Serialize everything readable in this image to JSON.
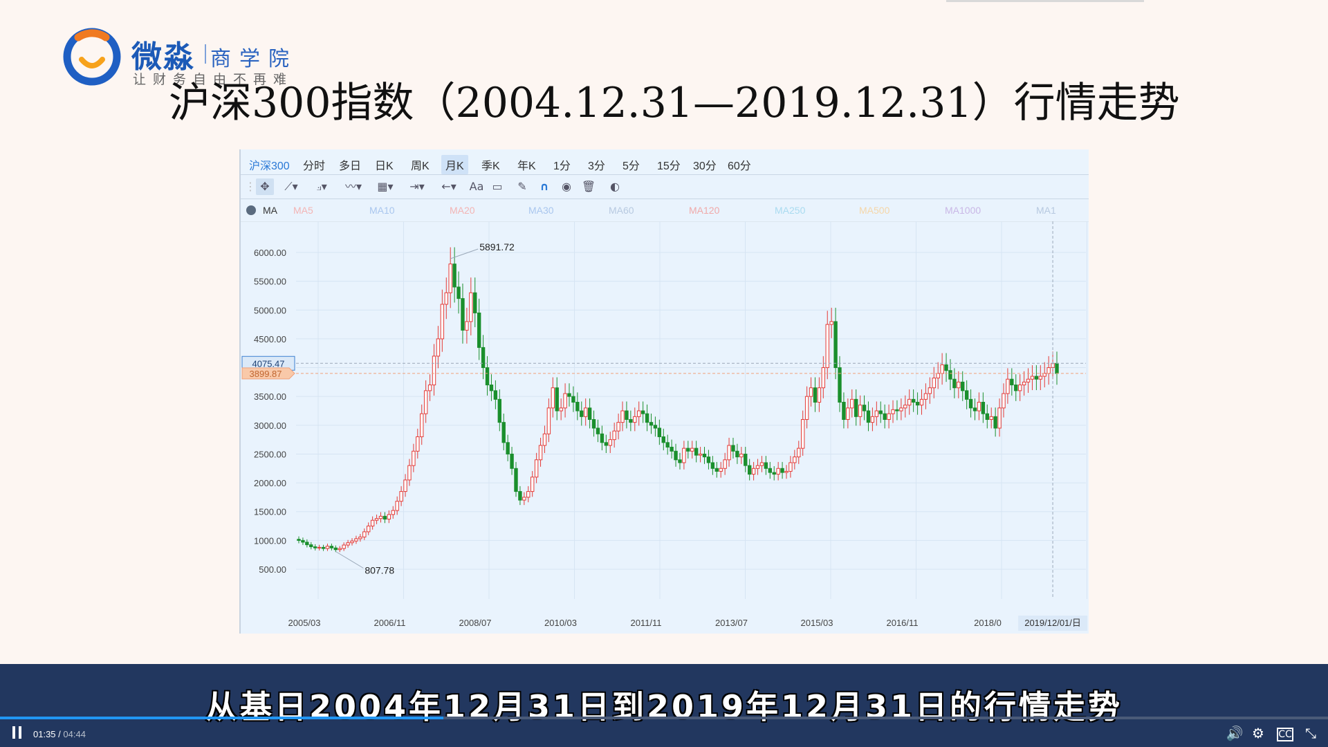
{
  "logo": {
    "brand": "微淼",
    "sub": "商学院",
    "slogan": "让财务自由不再难"
  },
  "slide_title": "沪深300指数（2004.12.31—2019.12.31）行情走势",
  "chart_panel": {
    "symbol": "沪深300",
    "tabs": [
      "分时",
      "多日",
      "日K",
      "周K",
      "月K",
      "季K",
      "年K",
      "1分",
      "3分",
      "5分",
      "15分",
      "30分",
      "60分"
    ],
    "active_tab": "月K",
    "ma_label": "MA",
    "ma_items": [
      {
        "label": "MA5",
        "color": "#f3b4b4"
      },
      {
        "label": "MA10",
        "color": "#a9c6ee"
      },
      {
        "label": "MA20",
        "color": "#f3b4b4"
      },
      {
        "label": "MA30",
        "color": "#a9c6ee"
      },
      {
        "label": "MA60",
        "color": "#b7c9e0"
      },
      {
        "label": "MA120",
        "color": "#f0a9a9"
      },
      {
        "label": "MA250",
        "color": "#a9dbf0"
      },
      {
        "label": "MA500",
        "color": "#f5d6a8"
      },
      {
        "label": "MA1000",
        "color": "#c9b7e6"
      },
      {
        "label": "MA1",
        "color": "#b7c9e0"
      }
    ],
    "colors": {
      "up": "#e53935",
      "down": "#1a8f2c",
      "up_fill": "#ffffff"
    }
  },
  "chart_data": {
    "type": "candlestick",
    "frequency": "monthly",
    "y_ticks": [
      "6000.00",
      "5500.00",
      "5000.00",
      "4500.00",
      "4000.00",
      "3500.00",
      "3000.00",
      "2500.00",
      "2000.00",
      "1500.00",
      "1000.00",
      "500.00"
    ],
    "ylim": [
      500,
      6000
    ],
    "x_ticks": [
      "2005/03",
      "2006/11",
      "2008/07",
      "2010/03",
      "2011/11",
      "2013/07",
      "2015/03",
      "2016/11",
      "2018/0"
    ],
    "cursor_date": "2019/12/01/日",
    "crosshair_price": "4075.47",
    "last_price": "3899.87",
    "annotations": {
      "high": "5891.72",
      "low": "807.78"
    },
    "closes": [
      1000,
      970,
      925,
      890,
      870,
      880,
      860,
      900,
      870,
      840,
      860,
      920,
      960,
      990,
      1030,
      1060,
      1150,
      1250,
      1350,
      1380,
      1420,
      1370,
      1450,
      1520,
      1680,
      1850,
      2050,
      2300,
      2550,
      2800,
      3200,
      3600,
      3700,
      4200,
      4500,
      5100,
      5300,
      5800,
      5400,
      5200,
      4650,
      4800,
      5300,
      4950,
      4350,
      4000,
      3700,
      3600,
      3450,
      3050,
      2700,
      2500,
      2250,
      1850,
      1700,
      1750,
      1850,
      2100,
      2400,
      2650,
      2850,
      3300,
      3650,
      3250,
      3300,
      3550,
      3500,
      3400,
      3250,
      3150,
      3300,
      3100,
      2950,
      2850,
      2700,
      2650,
      2750,
      2900,
      3050,
      3250,
      3100,
      3050,
      3150,
      3250,
      3200,
      3050,
      3000,
      2950,
      2800,
      2700,
      2620,
      2550,
      2400,
      2350,
      2600,
      2550,
      2600,
      2480,
      2500,
      2450,
      2350,
      2250,
      2200,
      2250,
      2400,
      2650,
      2550,
      2450,
      2500,
      2300,
      2150,
      2250,
      2300,
      2350,
      2250,
      2180,
      2150,
      2250,
      2180,
      2200,
      2350,
      2450,
      2600,
      3100,
      3500,
      3650,
      3400,
      3650,
      4000,
      4750,
      4800,
      4000,
      3400,
      3100,
      3300,
      3450,
      3150,
      3350,
      3250,
      3050,
      3150,
      3250,
      3200,
      3100,
      3200,
      3270,
      3250,
      3300,
      3350,
      3450,
      3400,
      3350,
      3450,
      3550,
      3650,
      3820,
      3900,
      4050,
      3950,
      3800,
      3650,
      3750,
      3600,
      3450,
      3300,
      3250,
      3400,
      3200,
      3100,
      3150,
      2950,
      3300,
      3550,
      3800,
      3700,
      3600,
      3700,
      3750,
      3800,
      3850,
      3800,
      3850,
      3900,
      4000,
      4075,
      3899
    ],
    "peak_index": 37,
    "trough_index": 9
  },
  "caption": "从基日2004年12月31日到2019年12月31日的行情走势",
  "player": {
    "current_time": "01:35",
    "duration": "04:44",
    "progress": 0.334
  }
}
